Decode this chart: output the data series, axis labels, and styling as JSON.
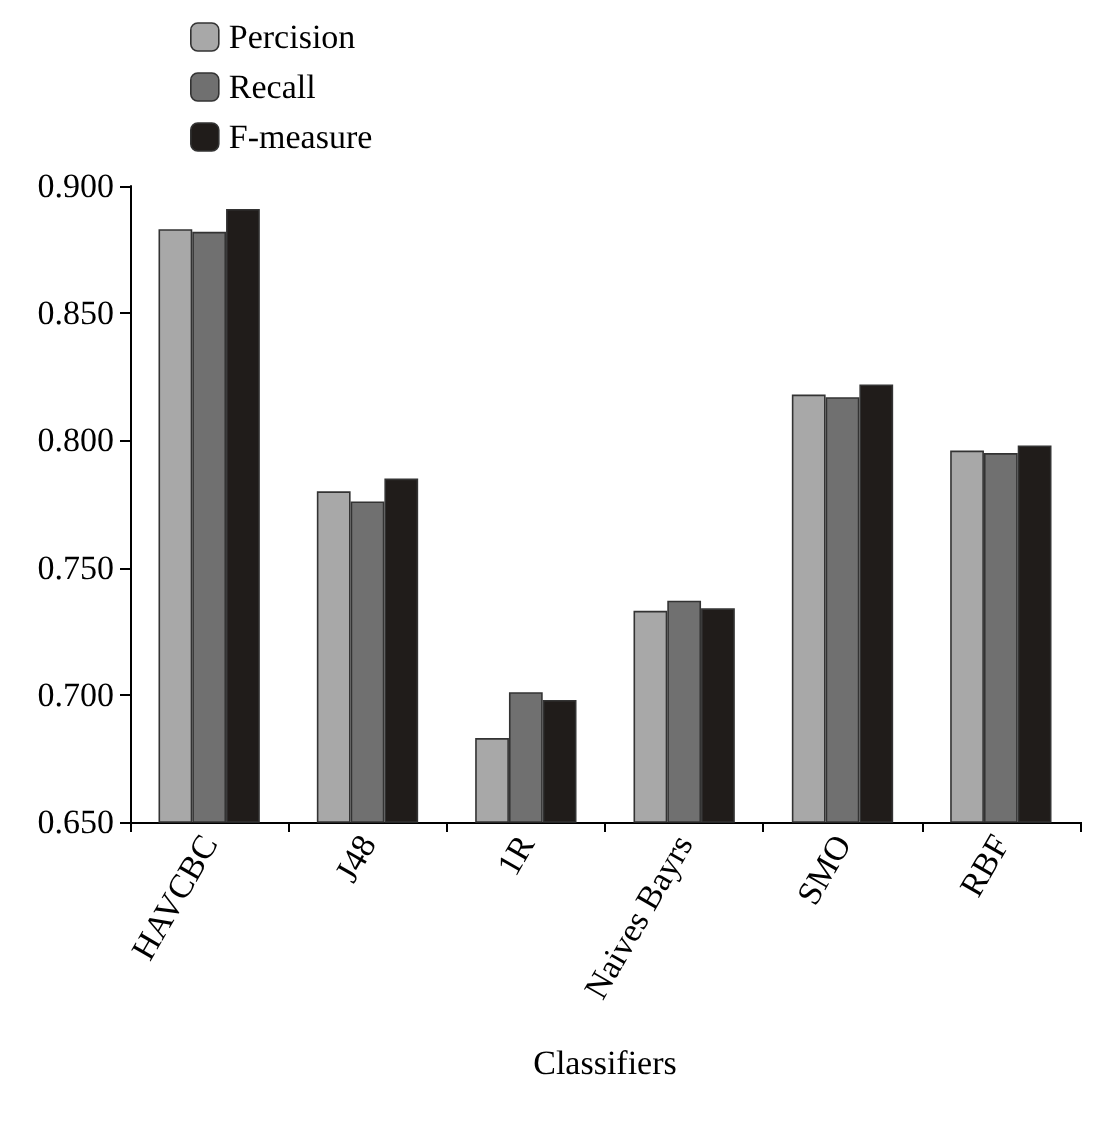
{
  "chart_data": {
    "type": "bar",
    "xlabel": "Classifiers",
    "categories": [
      "HAVCBC",
      "J48",
      "1R",
      "Naives Bayrs",
      "SMO",
      "RBF"
    ],
    "series": [
      {
        "name": "Percision",
        "color": "#a8a8a8",
        "values": [
          0.883,
          0.78,
          0.683,
          0.733,
          0.818,
          0.796
        ]
      },
      {
        "name": "Recall",
        "color": "#707070",
        "values": [
          0.882,
          0.776,
          0.701,
          0.737,
          0.817,
          0.795
        ]
      },
      {
        "name": "F-measure",
        "color": "#201c1a",
        "values": [
          0.891,
          0.785,
          0.698,
          0.734,
          0.822,
          0.798
        ]
      }
    ],
    "ylim": [
      0.65,
      0.9
    ],
    "yticks": [
      {
        "value": 0.65,
        "label": "0.650"
      },
      {
        "value": 0.7,
        "label": "0.700"
      },
      {
        "value": 0.75,
        "label": "0.750"
      },
      {
        "value": 0.8,
        "label": "0.800"
      },
      {
        "value": 0.85,
        "label": "0.850"
      },
      {
        "value": 0.9,
        "label": "0.900"
      }
    ],
    "grid": false,
    "legend": "top left"
  }
}
